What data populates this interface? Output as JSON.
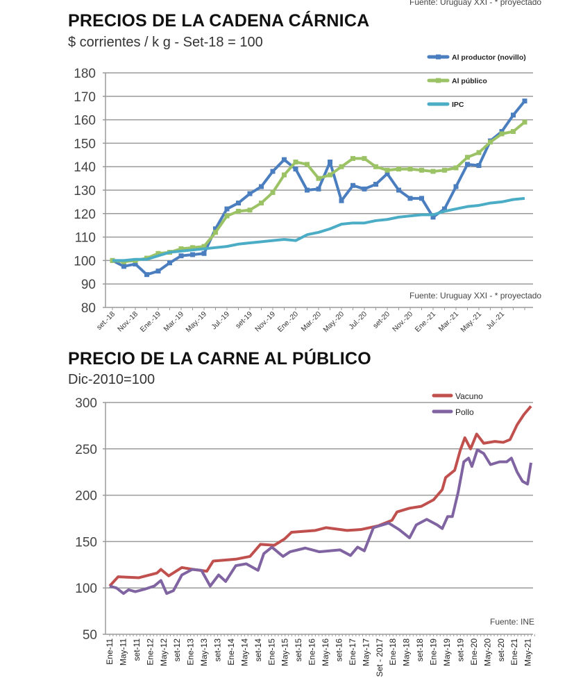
{
  "chart_data": [
    {
      "type": "line",
      "title": "PRECIOS DE LA CADENA CÁRNICA",
      "subtitle": "$ corrientes / k g - Set-18 = 100",
      "source_top": "Fuente: Uruguay XXI - * proyectado",
      "source": "Fuente: Uruguay XXI - * proyectado",
      "ylim": [
        80,
        180
      ],
      "yticks": [
        80,
        90,
        100,
        110,
        120,
        130,
        140,
        150,
        160,
        170,
        180
      ],
      "grid": true,
      "legend_position": "top-right",
      "x_tick_labels": [
        "set.-18",
        "Nov.-18",
        "Ene.-19",
        "Mar.-19",
        "May.-19",
        "Jul.-19",
        "set-19",
        "Nov.-19",
        "Ene.-20",
        "Mar.-20",
        "May.-20",
        "Jul.-20",
        "set-20",
        "Nov.-20",
        "Ene.-21",
        "Mar.-21",
        "May.-21",
        "Jul.-21"
      ],
      "x_tick_step_months": 2,
      "n_months": 37,
      "series": [
        {
          "name": "Al productor (novillo)",
          "color": "#4a7ebf",
          "markers": true,
          "values": [
            100,
            97.5,
            98.5,
            94,
            95.5,
            99,
            102,
            102.5,
            103,
            113.5,
            122,
            124.5,
            128.5,
            131.5,
            138,
            143,
            139,
            130,
            130.5,
            142,
            125.5,
            132,
            130.5,
            132.5,
            137,
            130,
            126.5,
            126.5,
            118.5,
            122,
            131.5,
            141,
            140.5,
            151,
            155,
            162,
            168
          ]
        },
        {
          "name": "Al público",
          "color": "#9bc264",
          "markers": true,
          "values": [
            100,
            99.5,
            100,
            101,
            103,
            103.5,
            105,
            105.5,
            106,
            112,
            119,
            121,
            121.5,
            124.5,
            129,
            136.5,
            142,
            141,
            135,
            136.5,
            140,
            143.5,
            143.5,
            140,
            138.5,
            139,
            139,
            138.5,
            138,
            138.5,
            139.5,
            144,
            146,
            150.5,
            154,
            155,
            159
          ]
        },
        {
          "name": "IPC",
          "color": "#4bacc6",
          "markers": false,
          "values": [
            100,
            100,
            100.5,
            100.5,
            102,
            103.5,
            104,
            104.5,
            105,
            105.5,
            106,
            107,
            107.5,
            108,
            108.5,
            109,
            108.5,
            111,
            112,
            113.5,
            115.5,
            116,
            116,
            117,
            117.5,
            118.5,
            119,
            119.5,
            119.5,
            121,
            122,
            123,
            123.5,
            124.5,
            125,
            126,
            126.5
          ]
        }
      ]
    },
    {
      "type": "line",
      "title": "PRECIO DE LA CARNE AL PÚBLICO",
      "subtitle": "Dic-2010=100",
      "source": "Fuente: INE",
      "ylim": [
        50,
        300
      ],
      "yticks": [
        50,
        100,
        150,
        200,
        250,
        300
      ],
      "grid": true,
      "legend_position": "top-right",
      "x_tick_labels": [
        "Ene-11",
        "May-11",
        "set-11",
        "Ene-12",
        "May-12",
        "set-12",
        "Ene-13",
        "May-13",
        "set-13",
        "Ene-14",
        "May-14",
        "set-14",
        "Ene-15",
        "May-15",
        "set-15",
        "Ene-16",
        "May-16",
        "set-16",
        "Ene-17",
        "May-17",
        "Set - 2017",
        "Ene-18",
        "May-18",
        "set-18",
        "Ene-19",
        "May-19",
        "set-19",
        "Ene-20",
        "May-20",
        "set-20",
        "Ene-21",
        "May-21"
      ],
      "x_tick_step_months": 4,
      "x_unit": "months since Ene-11",
      "series": [
        {
          "name": "Vacuno",
          "color": "#c0504d",
          "points": [
            [
              0,
              102
            ],
            [
              2.5,
              112
            ],
            [
              8.6,
              111
            ],
            [
              14,
              116
            ],
            [
              15.2,
              120
            ],
            [
              17.5,
              113
            ],
            [
              21.4,
              122
            ],
            [
              24.7,
              120
            ],
            [
              28.8,
              118
            ],
            [
              30.7,
              129
            ],
            [
              37.4,
              131
            ],
            [
              41.6,
              134
            ],
            [
              44.7,
              147
            ],
            [
              48.8,
              146
            ],
            [
              51.9,
              153
            ],
            [
              53.9,
              160
            ],
            [
              61,
              162
            ],
            [
              64.2,
              165
            ],
            [
              70.4,
              162
            ],
            [
              74.5,
              163
            ],
            [
              79.6,
              167
            ],
            [
              83.7,
              173
            ],
            [
              85.2,
              182
            ],
            [
              88.9,
              186
            ],
            [
              92.4,
              188
            ],
            [
              96,
              195
            ],
            [
              98.6,
              206
            ],
            [
              99.6,
              219
            ],
            [
              102.3,
              227
            ],
            [
              103.9,
              248
            ],
            [
              105.3,
              262
            ],
            [
              107,
              250
            ],
            [
              108.8,
              266
            ],
            [
              110.9,
              256
            ],
            [
              114.2,
              258
            ],
            [
              116.7,
              257
            ],
            [
              118.7,
              260
            ],
            [
              120.8,
              276
            ],
            [
              122.8,
              287
            ],
            [
              124.9,
              296
            ]
          ]
        },
        {
          "name": "Pollo",
          "color": "#8064a2",
          "points": [
            [
              0,
              102
            ],
            [
              2,
              100
            ],
            [
              4.1,
              94
            ],
            [
              5.6,
              98
            ],
            [
              7.6,
              96
            ],
            [
              10.7,
              99
            ],
            [
              13.2,
              102
            ],
            [
              15.2,
              108
            ],
            [
              16.9,
              94
            ],
            [
              18.9,
              97
            ],
            [
              21.4,
              114
            ],
            [
              24.5,
              120
            ],
            [
              27.2,
              119
            ],
            [
              29.8,
              102
            ],
            [
              32.3,
              114
            ],
            [
              34.4,
              107
            ],
            [
              37.4,
              124
            ],
            [
              40.5,
              126
            ],
            [
              44,
              119
            ],
            [
              45.7,
              137
            ],
            [
              48.1,
              144
            ],
            [
              51.4,
              134
            ],
            [
              53.5,
              139
            ],
            [
              58,
              143
            ],
            [
              62.1,
              139
            ],
            [
              68.3,
              141
            ],
            [
              71.4,
              135
            ],
            [
              73.5,
              144
            ],
            [
              75.5,
              140
            ],
            [
              78.2,
              165
            ],
            [
              82.7,
              170
            ],
            [
              85.8,
              163
            ],
            [
              88.9,
              154
            ],
            [
              90.9,
              168
            ],
            [
              94,
              174
            ],
            [
              97.1,
              168
            ],
            [
              98.6,
              164
            ],
            [
              100.2,
              177
            ],
            [
              101.6,
              177
            ],
            [
              103.3,
              203
            ],
            [
              105,
              236
            ],
            [
              106.4,
              240
            ],
            [
              107.4,
              231
            ],
            [
              109,
              249
            ],
            [
              110.9,
              245
            ],
            [
              112.9,
              233
            ],
            [
              115.6,
              236
            ],
            [
              117.7,
              236
            ],
            [
              119.1,
              240
            ],
            [
              120.8,
              225
            ],
            [
              122.4,
              215
            ],
            [
              123.9,
              212
            ],
            [
              124.9,
              235
            ]
          ]
        }
      ]
    }
  ]
}
